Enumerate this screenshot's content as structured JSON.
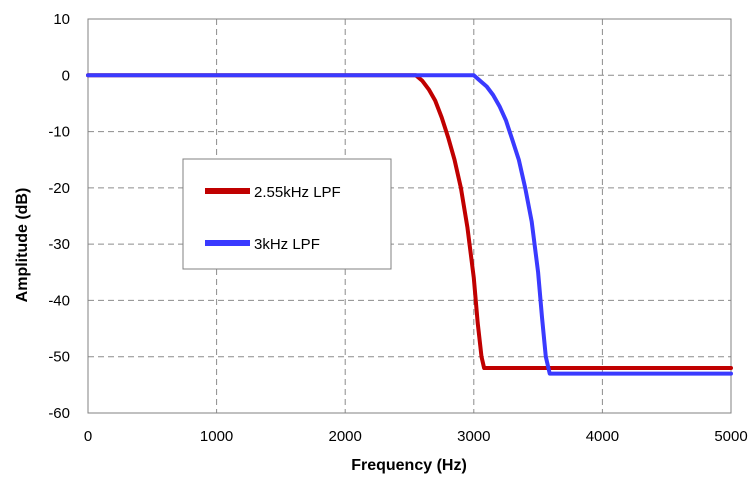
{
  "chart_data": {
    "type": "line",
    "title": "",
    "xlabel": "Frequency (Hz)",
    "ylabel": "Amplitude (dB)",
    "xlim": [
      0,
      5000
    ],
    "ylim": [
      -60,
      10
    ],
    "x_ticks": [
      "0",
      "1000",
      "2000",
      "3000",
      "4000",
      "5000"
    ],
    "y_ticks": [
      "10",
      "0",
      "-10",
      "-20",
      "-30",
      "-40",
      "-50",
      "-60"
    ],
    "grid": true,
    "legend_placement": "center-left",
    "series": [
      {
        "name": "2.55kHz LPF",
        "color": "#c00000",
        "x": [
          0,
          2550,
          2600,
          2650,
          2700,
          2750,
          2800,
          2850,
          2900,
          2950,
          3000,
          3030,
          3060,
          3080,
          3100,
          5000
        ],
        "y": [
          0,
          0,
          -1,
          -2.5,
          -4.5,
          -7.5,
          -11,
          -15,
          -20,
          -27,
          -36,
          -44,
          -50,
          -52,
          -52,
          -52
        ]
      },
      {
        "name": "3kHz LPF",
        "color": "#3a3aff",
        "x": [
          0,
          3000,
          3050,
          3100,
          3150,
          3200,
          3250,
          3300,
          3350,
          3400,
          3450,
          3500,
          3530,
          3560,
          3590,
          3610,
          5000
        ],
        "y": [
          0,
          0,
          -1,
          -2,
          -3.5,
          -5.5,
          -8,
          -11.5,
          -15,
          -20,
          -26,
          -35,
          -43,
          -50,
          -53,
          -53,
          -53
        ]
      }
    ]
  }
}
